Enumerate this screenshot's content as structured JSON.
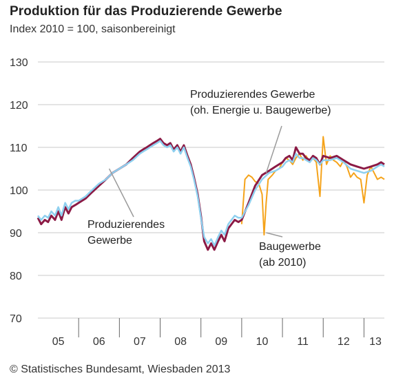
{
  "title": "Produktion für das Produzierende Gewerbe",
  "subtitle": "Index 2010 = 100, saisonbereinigt",
  "footer": "© Statistisches Bundesamt, Wiesbaden 2013",
  "chart_data": {
    "type": "line",
    "ylim": [
      70,
      130
    ],
    "xlim": [
      2005.0,
      2013.5
    ],
    "yticks": [
      70,
      80,
      90,
      100,
      110,
      120,
      130
    ],
    "xticklabels": [
      "05",
      "06",
      "07",
      "08",
      "09",
      "10",
      "11",
      "12",
      "13"
    ],
    "grid": "horizontal",
    "colors": {
      "produzierendes_gewerbe": "#8b1a45",
      "ohne_energie_bau": "#8fd0ef",
      "baugewerbe": "#f5a31a",
      "grid": "#c8c8c8",
      "leader": "#9a9a9a"
    },
    "annotations": [
      {
        "lines": [
          "Produzierendes Gewerbe",
          "(oh. Energie u. Baugewerbe)"
        ],
        "point": [
          2010.6,
          104
        ]
      },
      {
        "lines": [
          "Produzierendes",
          "Gewerbe"
        ],
        "point": [
          2006.75,
          105
        ]
      },
      {
        "lines": [
          "Baugewerbe",
          "(ab 2010)"
        ],
        "point": [
          2010.6,
          90
        ]
      }
    ],
    "series": [
      {
        "key": "produzierendes_gewerbe",
        "x": [
          2005.0,
          2005.08,
          2005.17,
          2005.25,
          2005.33,
          2005.42,
          2005.5,
          2005.58,
          2005.67,
          2005.75,
          2005.83,
          2005.92,
          2006.0,
          2006.17,
          2006.33,
          2006.5,
          2006.67,
          2006.83,
          2007.0,
          2007.17,
          2007.33,
          2007.5,
          2007.58,
          2007.67,
          2007.75,
          2007.83,
          2007.92,
          2008.0,
          2008.08,
          2008.17,
          2008.25,
          2008.33,
          2008.42,
          2008.5,
          2008.58,
          2008.67,
          2008.75,
          2008.83,
          2008.92,
          2009.0,
          2009.08,
          2009.17,
          2009.25,
          2009.33,
          2009.42,
          2009.5,
          2009.58,
          2009.67,
          2009.75,
          2009.83,
          2009.92,
          2010.0,
          2010.17,
          2010.33,
          2010.5,
          2010.67,
          2010.83,
          2011.0,
          2011.08,
          2011.17,
          2011.25,
          2011.33,
          2011.42,
          2011.5,
          2011.58,
          2011.67,
          2011.75,
          2011.83,
          2011.92,
          2012.0,
          2012.17,
          2012.33,
          2012.5,
          2012.67,
          2012.83,
          2013.0,
          2013.17,
          2013.33,
          2013.42,
          2013.5
        ],
        "y": [
          93.5,
          92,
          93,
          92.5,
          94,
          93,
          95,
          93,
          96,
          94.5,
          96,
          96.5,
          97,
          98,
          99.5,
          101,
          102.5,
          104,
          105,
          106,
          107.5,
          109,
          109.5,
          110,
          110.5,
          111,
          111.5,
          112,
          111,
          110.5,
          111,
          109.5,
          110.5,
          109,
          110.5,
          108,
          106,
          103,
          99,
          94,
          88,
          86,
          87.5,
          86,
          88,
          89.5,
          88,
          91,
          92,
          93,
          92.5,
          93,
          97,
          101,
          103.5,
          104.5,
          105.5,
          106.5,
          107.5,
          108,
          107,
          110,
          108.5,
          108.5,
          107.5,
          107,
          108,
          107.5,
          106,
          108,
          107.5,
          108,
          107,
          106,
          105.5,
          105,
          105.5,
          106,
          106.5,
          106
        ]
      },
      {
        "key": "ohne_energie_bau",
        "x": [
          2005.0,
          2005.08,
          2005.17,
          2005.25,
          2005.33,
          2005.42,
          2005.5,
          2005.58,
          2005.67,
          2005.75,
          2005.83,
          2005.92,
          2006.0,
          2006.17,
          2006.33,
          2006.5,
          2006.67,
          2006.83,
          2007.0,
          2007.17,
          2007.33,
          2007.5,
          2007.58,
          2007.67,
          2007.75,
          2007.83,
          2007.92,
          2008.0,
          2008.08,
          2008.17,
          2008.25,
          2008.33,
          2008.42,
          2008.5,
          2008.58,
          2008.67,
          2008.75,
          2008.83,
          2008.92,
          2009.0,
          2009.08,
          2009.17,
          2009.25,
          2009.33,
          2009.42,
          2009.5,
          2009.58,
          2009.67,
          2009.75,
          2009.83,
          2009.92,
          2010.0,
          2010.17,
          2010.33,
          2010.5,
          2010.67,
          2010.83,
          2011.0,
          2011.08,
          2011.17,
          2011.25,
          2011.33,
          2011.42,
          2011.5,
          2011.58,
          2011.67,
          2011.75,
          2011.83,
          2011.92,
          2012.0,
          2012.17,
          2012.33,
          2012.5,
          2012.67,
          2012.83,
          2013.0,
          2013.17,
          2013.33,
          2013.42,
          2013.5
        ],
        "y": [
          94,
          93,
          94,
          93.5,
          95,
          94,
          96,
          94,
          97,
          95.5,
          97,
          97.5,
          97.5,
          98.5,
          100,
          101.5,
          102.5,
          104,
          105,
          106,
          107,
          108.5,
          109,
          109.5,
          110,
          110.5,
          111,
          111.5,
          110.5,
          110,
          110.5,
          109,
          110,
          108.5,
          110,
          107.5,
          105.5,
          102.5,
          98.5,
          93.5,
          89,
          87.5,
          88.5,
          87,
          89,
          90.5,
          89.5,
          92,
          93,
          94,
          93.5,
          93.5,
          96.5,
          100,
          102.5,
          104,
          104.5,
          105.5,
          106.5,
          107,
          106.5,
          108.5,
          107.5,
          107.5,
          107,
          106.5,
          107.5,
          107,
          106,
          107,
          107,
          107.5,
          106.5,
          105,
          104.5,
          104,
          104.5,
          105.5,
          106,
          105.5
        ]
      },
      {
        "key": "baugewerbe",
        "x": [
          2010.0,
          2010.08,
          2010.17,
          2010.25,
          2010.33,
          2010.42,
          2010.5,
          2010.55,
          2010.6,
          2010.65,
          2010.75,
          2010.83,
          2010.92,
          2011.0,
          2011.08,
          2011.17,
          2011.25,
          2011.33,
          2011.42,
          2011.5,
          2011.58,
          2011.67,
          2011.75,
          2011.83,
          2011.92,
          2012.0,
          2012.08,
          2012.17,
          2012.25,
          2012.33,
          2012.42,
          2012.5,
          2012.58,
          2012.67,
          2012.75,
          2012.83,
          2012.92,
          2013.0,
          2013.08,
          2013.17,
          2013.25,
          2013.33,
          2013.42,
          2013.5
        ],
        "y": [
          92,
          102.5,
          103.5,
          103,
          102,
          101.5,
          99,
          89.5,
          97,
          102.5,
          103.5,
          104.5,
          105,
          106.5,
          107.5,
          107,
          106,
          107.5,
          108.5,
          107,
          108,
          106.5,
          107.5,
          106.5,
          98.5,
          112.5,
          106,
          108,
          107,
          106.5,
          105.5,
          107,
          105.5,
          103,
          104,
          103,
          102.5,
          97,
          103.5,
          105.5,
          104,
          102.5,
          103,
          102.5
        ]
      }
    ]
  }
}
